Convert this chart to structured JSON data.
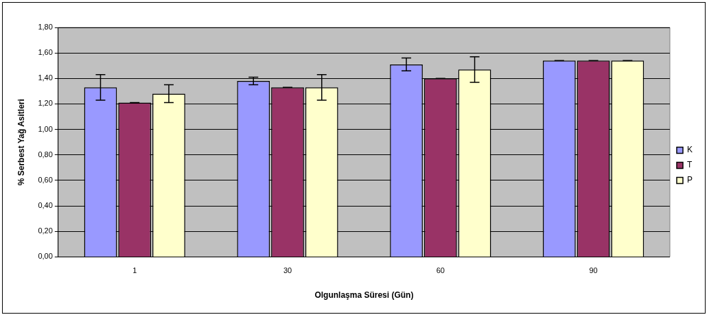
{
  "chart_data": {
    "type": "bar",
    "xlabel": "Olgunlaşma Süresi (Gün)",
    "ylabel": "% Serbest Yağ Asitleri",
    "categories": [
      "1",
      "30",
      "60",
      "90"
    ],
    "series": [
      {
        "name": "K",
        "color": "#9999ff",
        "values": [
          1.33,
          1.38,
          1.51,
          1.54
        ],
        "errors": [
          0.1,
          0.03,
          0.05,
          0
        ]
      },
      {
        "name": "T",
        "color": "#993366",
        "values": [
          1.21,
          1.33,
          1.4,
          1.54
        ],
        "errors": [
          0,
          0,
          0,
          0
        ]
      },
      {
        "name": "P",
        "color": "#ffffcc",
        "values": [
          1.28,
          1.33,
          1.47,
          1.54
        ],
        "errors": [
          0.07,
          0.1,
          0.1,
          0
        ]
      }
    ],
    "ylim": [
      0,
      1.8
    ],
    "yticks": [
      {
        "value": 0,
        "label": "0,00"
      },
      {
        "value": 0.2,
        "label": "0,20"
      },
      {
        "value": 0.4,
        "label": "0,40"
      },
      {
        "value": 0.6,
        "label": "0,60"
      },
      {
        "value": 0.8,
        "label": "0,80"
      },
      {
        "value": 1,
        "label": "1,00"
      },
      {
        "value": 1.2,
        "label": "1,20"
      },
      {
        "value": 1.4,
        "label": "1,40"
      },
      {
        "value": 1.6,
        "label": "1,60"
      },
      {
        "value": 1.8,
        "label": "1,80"
      }
    ],
    "grid": "y",
    "legend": "right"
  }
}
